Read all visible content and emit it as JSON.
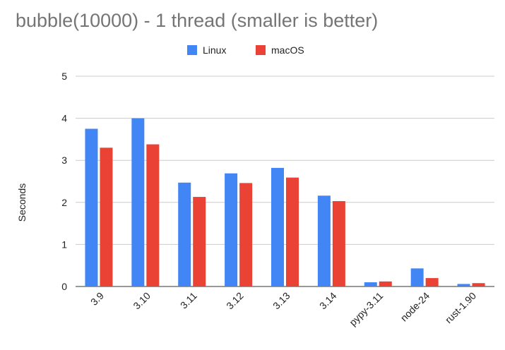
{
  "chart_data": {
    "type": "bar",
    "title": "bubble(10000) - 1 thread (smaller is better)",
    "xlabel": "",
    "ylabel": "Seconds",
    "ylim": [
      0,
      5
    ],
    "yticks": [
      0,
      1,
      2,
      3,
      4,
      5
    ],
    "grid": true,
    "legend_position": "top",
    "categories": [
      "3.9",
      "3.10",
      "3.11",
      "3.12",
      "3.13",
      "3.14",
      "pypy-3.11",
      "node-24",
      "rust-1.90"
    ],
    "series": [
      {
        "name": "Linux",
        "color": "#4285f4",
        "values": [
          3.75,
          4.0,
          2.47,
          2.69,
          2.82,
          2.16,
          0.1,
          0.43,
          0.06
        ]
      },
      {
        "name": "macOS",
        "color": "#ea4335",
        "values": [
          3.3,
          3.38,
          2.13,
          2.46,
          2.59,
          2.03,
          0.12,
          0.2,
          0.08
        ]
      }
    ]
  }
}
